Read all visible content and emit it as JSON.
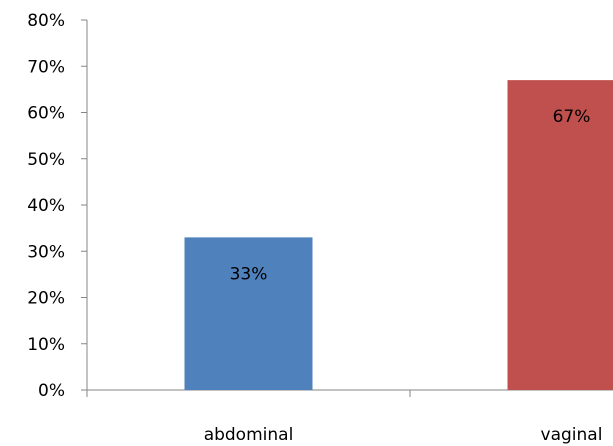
{
  "chart_data": {
    "type": "bar",
    "categories": [
      "abdominal",
      "vaginal"
    ],
    "values": [
      33,
      67
    ],
    "data_labels": [
      "33%",
      "67%"
    ],
    "colors": [
      "#4F81BD",
      "#C0504D"
    ],
    "title": "",
    "xlabel": "",
    "ylabel": "",
    "ylim": [
      0,
      80
    ],
    "yticks": [
      0,
      10,
      20,
      30,
      40,
      50,
      60,
      70,
      80
    ],
    "ytick_labels": [
      "0%",
      "10%",
      "20%",
      "30%",
      "40%",
      "50%",
      "60%",
      "70%",
      "80%"
    ],
    "grid": false,
    "legend": "none"
  }
}
